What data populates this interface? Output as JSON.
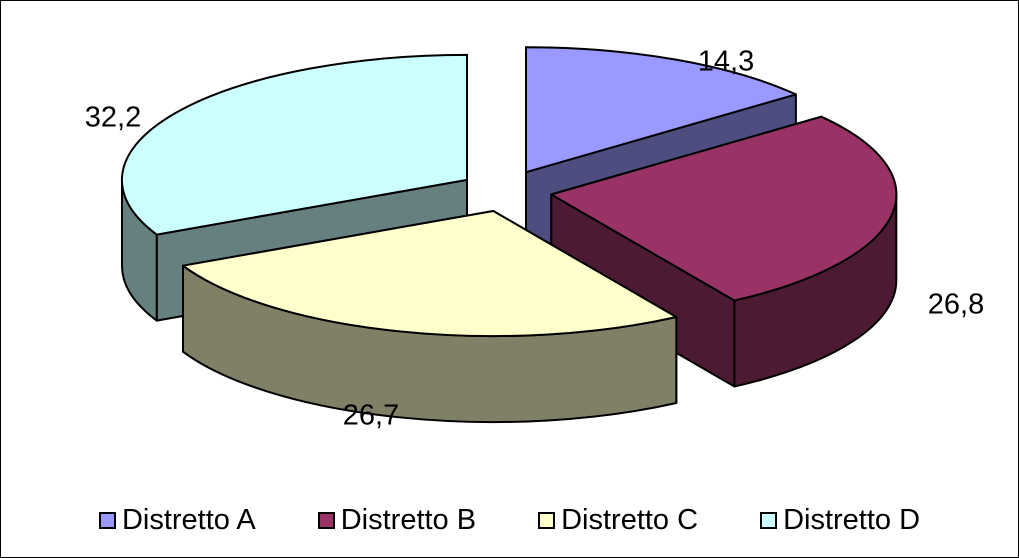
{
  "chart_data": {
    "type": "pie",
    "style": "3d-exploded",
    "categories": [
      "Distretto A",
      "Distretto B",
      "Distretto C",
      "Distretto D"
    ],
    "values": [
      14.3,
      26.8,
      26.7,
      32.2
    ],
    "value_labels": [
      "14,3",
      "26,8",
      "26,7",
      "32,2"
    ],
    "colors": {
      "top": [
        "#9999ff",
        "#993366",
        "#ffffcc",
        "#ccffff"
      ],
      "side": [
        "#4d4d80",
        "#4d1a33",
        "#808066",
        "#668080"
      ]
    },
    "title": "",
    "legend_position": "bottom"
  }
}
